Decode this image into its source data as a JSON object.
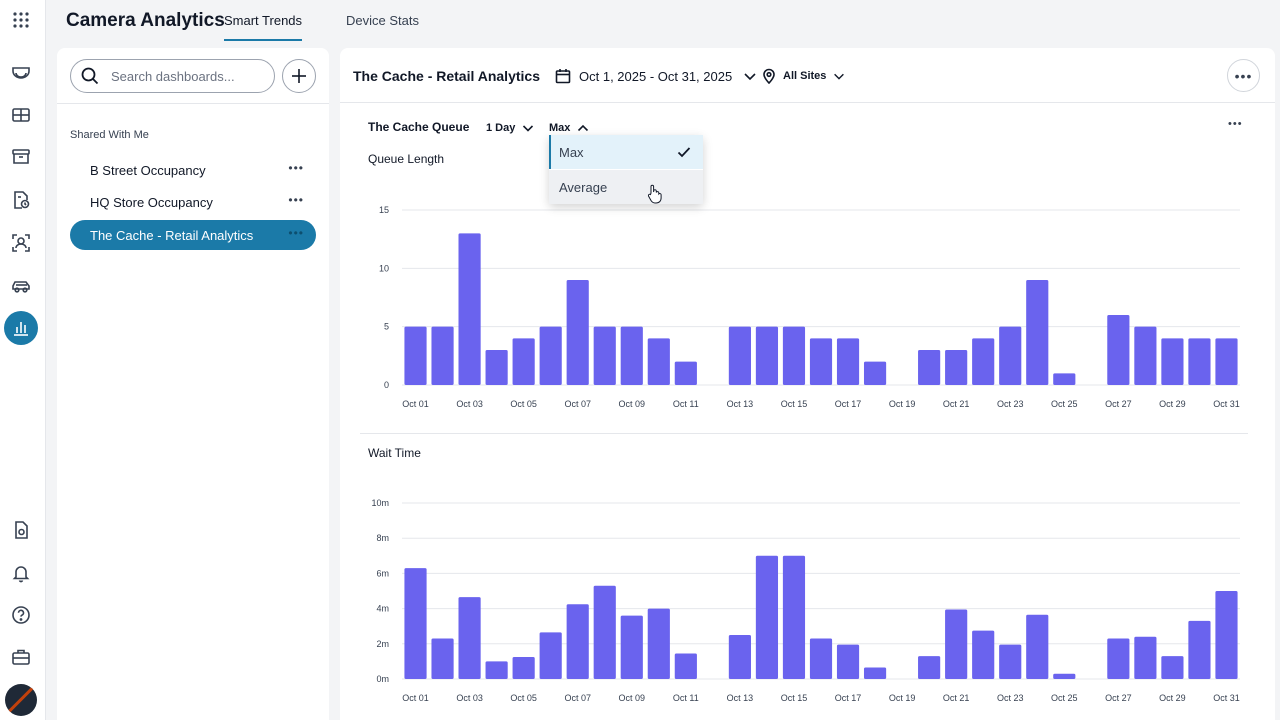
{
  "app": {
    "title": "Camera Analytics"
  },
  "tabs": [
    {
      "label": "Smart Trends",
      "active": true
    },
    {
      "label": "Device Stats",
      "active": false
    }
  ],
  "rail": {
    "icons": [
      "apps-grid-icon",
      "dome-camera-icon",
      "video-wall-icon",
      "archive-icon",
      "access-report-icon",
      "face-search-icon",
      "vehicle-icon",
      "analytics-chart-icon",
      "settings-doc-icon",
      "bell-icon",
      "help-icon",
      "briefcase-icon",
      "user-avatar"
    ],
    "active": "analytics-chart-icon"
  },
  "sidebar": {
    "search_placeholder": "Search dashboards...",
    "section_label": "Shared With Me",
    "items": [
      {
        "label": "B Street Occupancy",
        "active": false
      },
      {
        "label": "HQ Store Occupancy",
        "active": false
      },
      {
        "label": "The Cache - Retail Analytics",
        "active": true
      }
    ]
  },
  "header": {
    "dashboard_title": "The Cache - Retail Analytics",
    "date_range": "Oct 1, 2025 - Oct 31, 2025",
    "sites": "All Sites"
  },
  "card": {
    "title": "The Cache Queue",
    "interval": "1 Day",
    "aggregation": "Max"
  },
  "dropdown": {
    "options": [
      {
        "label": "Max",
        "selected": true
      },
      {
        "label": "Average",
        "selected": false
      }
    ]
  },
  "colors": {
    "accent": "#1b7aa8",
    "bar": "#6a63ee"
  },
  "chart_data": [
    {
      "type": "bar",
      "title": "Queue Length",
      "categories": [
        "Oct 01",
        "Oct 02",
        "Oct 03",
        "Oct 04",
        "Oct 05",
        "Oct 06",
        "Oct 07",
        "Oct 08",
        "Oct 09",
        "Oct 10",
        "Oct 11",
        "Oct 12",
        "Oct 13",
        "Oct 14",
        "Oct 15",
        "Oct 16",
        "Oct 17",
        "Oct 18",
        "Oct 19",
        "Oct 20",
        "Oct 21",
        "Oct 22",
        "Oct 23",
        "Oct 24",
        "Oct 25",
        "Oct 26",
        "Oct 27",
        "Oct 28",
        "Oct 29",
        "Oct 30",
        "Oct 31"
      ],
      "tick_labels": [
        "Oct 01",
        "Oct 03",
        "Oct 05",
        "Oct 07",
        "Oct 09",
        "Oct 11",
        "Oct 13",
        "Oct 15",
        "Oct 17",
        "Oct 19",
        "Oct 21",
        "Oct 23",
        "Oct 25",
        "Oct 27",
        "Oct 29",
        "Oct 31"
      ],
      "values": [
        5,
        5,
        13,
        3,
        4,
        5,
        9,
        5,
        5,
        4,
        2,
        0,
        5,
        5,
        5,
        4,
        4,
        2,
        0,
        3,
        3,
        4,
        5,
        9,
        1,
        0,
        6,
        5,
        4,
        4,
        4
      ],
      "yticks": [
        0,
        5,
        10,
        15
      ],
      "ytick_labels": [
        "0",
        "5",
        "10",
        "15"
      ],
      "ylim": [
        0,
        15
      ],
      "grid": true
    },
    {
      "type": "bar",
      "title": "Wait Time",
      "categories": [
        "Oct 01",
        "Oct 02",
        "Oct 03",
        "Oct 04",
        "Oct 05",
        "Oct 06",
        "Oct 07",
        "Oct 08",
        "Oct 09",
        "Oct 10",
        "Oct 11",
        "Oct 12",
        "Oct 13",
        "Oct 14",
        "Oct 15",
        "Oct 16",
        "Oct 17",
        "Oct 18",
        "Oct 19",
        "Oct 20",
        "Oct 21",
        "Oct 22",
        "Oct 23",
        "Oct 24",
        "Oct 25",
        "Oct 26",
        "Oct 27",
        "Oct 28",
        "Oct 29",
        "Oct 30",
        "Oct 31"
      ],
      "tick_labels": [
        "Oct 01",
        "Oct 03",
        "Oct 05",
        "Oct 07",
        "Oct 09",
        "Oct 11",
        "Oct 13",
        "Oct 15",
        "Oct 17",
        "Oct 19",
        "Oct 21",
        "Oct 23",
        "Oct 25",
        "Oct 27",
        "Oct 29",
        "Oct 31"
      ],
      "values": [
        6.3,
        2.3,
        4.65,
        1.0,
        1.25,
        2.65,
        4.25,
        5.3,
        3.6,
        4.0,
        1.45,
        0,
        2.5,
        7.0,
        7.0,
        2.3,
        1.95,
        0.65,
        0,
        1.3,
        3.95,
        2.75,
        1.95,
        3.65,
        0.3,
        0,
        2.3,
        2.4,
        1.3,
        3.3,
        5.0
      ],
      "yticks": [
        0,
        2,
        4,
        6,
        8,
        10
      ],
      "ytick_labels": [
        "0m",
        "2m",
        "4m",
        "6m",
        "8m",
        "10m"
      ],
      "ylim": [
        0,
        10
      ],
      "unit": "m",
      "grid": true
    }
  ]
}
